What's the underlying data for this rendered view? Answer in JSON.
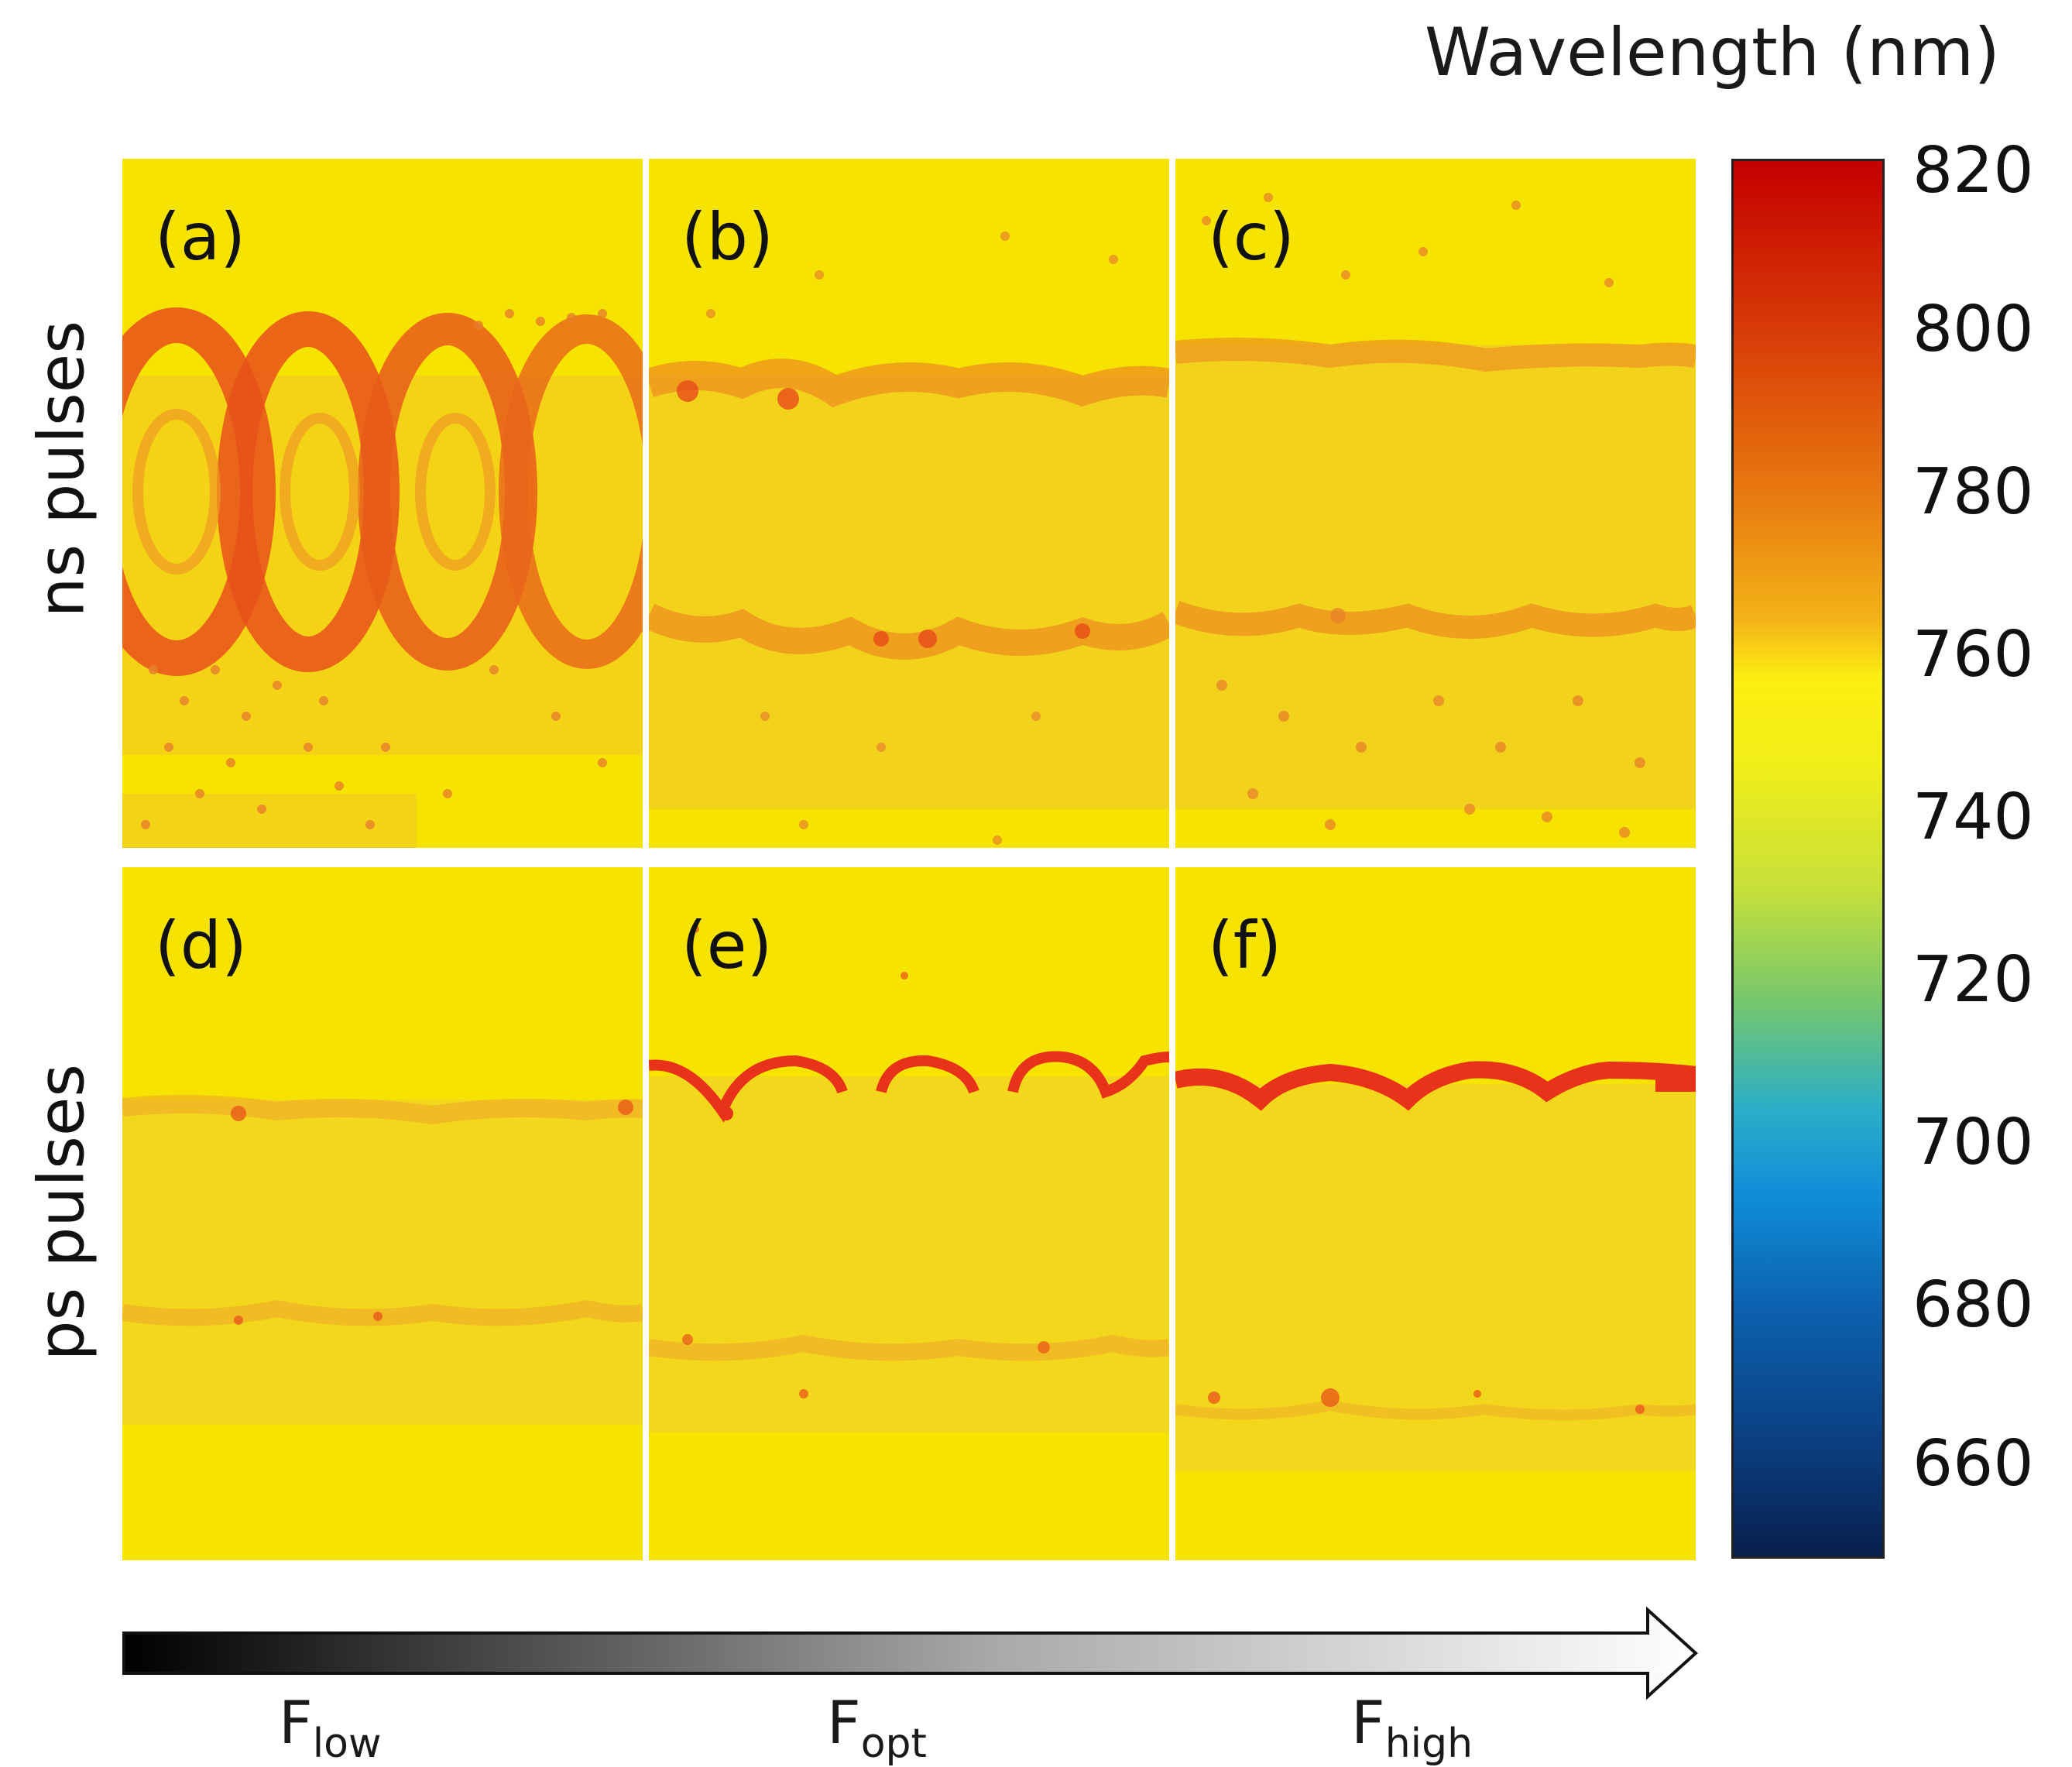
{
  "figure": {
    "panel_labels": [
      "(a)",
      "(b)",
      "(c)",
      "(d)",
      "(e)",
      "(f)"
    ],
    "row_labels": [
      "ns pulses",
      "ps pulses"
    ],
    "colorbar": {
      "title": "Wavelength  (nm)",
      "ticks": [
        "820",
        "800",
        "780",
        "760",
        "740",
        "720",
        "700",
        "680",
        "660"
      ],
      "range": [
        650,
        820
      ],
      "colormap": "jet"
    },
    "fluence_axis": {
      "labels": [
        {
          "main": "F",
          "sub": "low"
        },
        {
          "main": "F",
          "sub": "opt"
        },
        {
          "main": "F",
          "sub": "high"
        }
      ],
      "gradient": [
        "#000000",
        "#ffffff"
      ]
    },
    "colors": {
      "background_map": "#f6e800",
      "feature_orange": "#f08a18",
      "feature_red": "#e8321a"
    }
  }
}
